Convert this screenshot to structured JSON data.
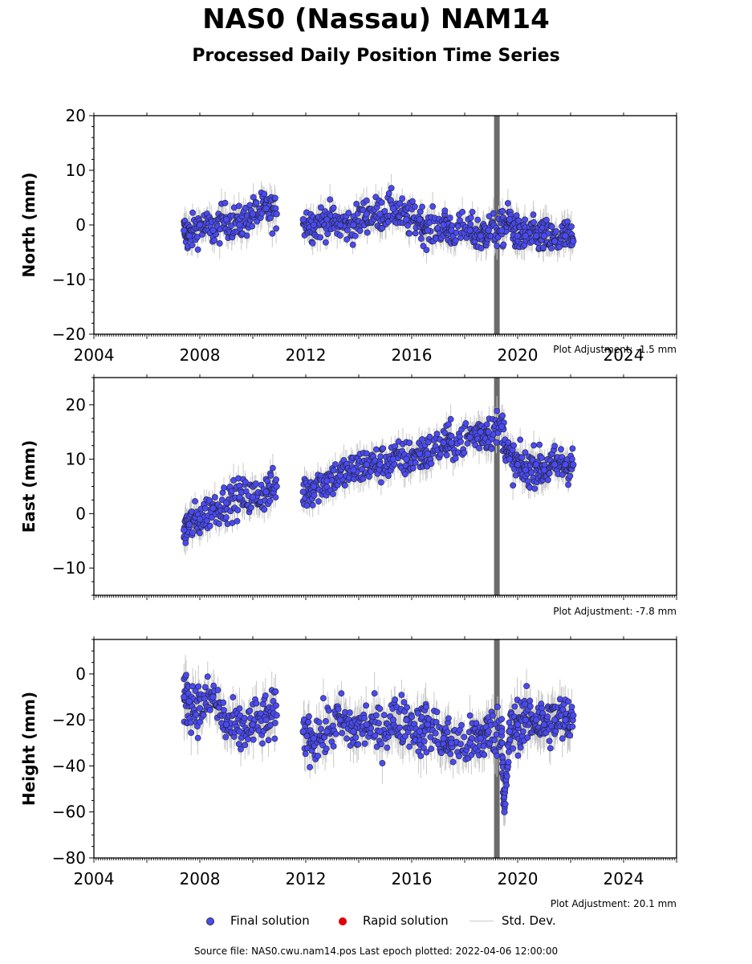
{
  "title": "NAS0 (Nassau) NAM14",
  "subtitle": "Processed Daily Position Time Series",
  "footer": "Source file: NAS0.cwu.nam14.pos  Last epoch plotted: 2022-04-06 12:00:00",
  "legend": {
    "final_label": "Final solution",
    "rapid_label": "Rapid solution",
    "std_label": "Std. Dev."
  },
  "colors": {
    "final": "#4a4af5",
    "rapid": "#e00000",
    "std_dev": "#c8c8c8",
    "equipment_change": "#6b6b6b"
  },
  "chart_data": [
    {
      "type": "scatter",
      "ylabel": "North (mm)",
      "ylim": [
        -20,
        20
      ],
      "yticks": [
        -20,
        -10,
        0,
        10,
        20
      ],
      "xlim": [
        2004,
        2026
      ],
      "xticks": [
        2004,
        2008,
        2012,
        2016,
        2020,
        2024
      ],
      "adjustment": "Plot Adjustment: -1.5 mm",
      "equipment_change": 2019.2,
      "series": [
        {
          "name": "Final solution",
          "x": [
            2007.4,
            2007.6,
            2008.0,
            2008.5,
            2009.0,
            2009.5,
            2010.0,
            2010.5,
            2010.9,
            2011.9,
            2012.3,
            2012.8,
            2013.3,
            2013.8,
            2014.3,
            2014.8,
            2015.3,
            2015.8,
            2016.3,
            2016.6,
            2017.2,
            2017.5,
            2018.2,
            2018.6,
            2018.9,
            2019.4,
            2019.7,
            2020.0,
            2020.3,
            2020.7,
            2021.0,
            2021.4,
            2021.8,
            2022.1
          ],
          "values": [
            -1,
            -2,
            0,
            -1,
            1,
            0,
            2,
            3,
            2,
            1,
            0,
            1,
            0,
            0,
            2,
            2,
            3,
            1,
            1,
            -1,
            0,
            -1,
            -1,
            -2,
            -1,
            -1,
            1,
            -2,
            -2,
            -2,
            -2,
            -3,
            -2,
            -3
          ]
        }
      ]
    },
    {
      "type": "scatter",
      "ylabel": "East (mm)",
      "ylim": [
        -15,
        25
      ],
      "yticks": [
        -10,
        0,
        10,
        20
      ],
      "xlim": [
        2004,
        2026
      ],
      "xticks": [
        2004,
        2008,
        2012,
        2016,
        2020,
        2024
      ],
      "adjustment": "Plot Adjustment: -7.8 mm",
      "equipment_change": 2019.2,
      "series": [
        {
          "name": "Final solution",
          "x": [
            2007.4,
            2007.6,
            2008.0,
            2008.5,
            2009.0,
            2009.5,
            2010.0,
            2010.5,
            2010.9,
            2011.9,
            2012.3,
            2012.8,
            2013.3,
            2013.8,
            2014.3,
            2014.8,
            2015.3,
            2015.8,
            2016.3,
            2016.6,
            2017.2,
            2017.5,
            2018.2,
            2018.6,
            2018.9,
            2019.4,
            2019.7,
            2020.0,
            2020.3,
            2020.7,
            2021.0,
            2021.4,
            2021.8,
            2022.1
          ],
          "values": [
            -3,
            -2,
            -1,
            1,
            2,
            3,
            3,
            4,
            5,
            4,
            5,
            6,
            7,
            8,
            9,
            9,
            10,
            10,
            11,
            11,
            13,
            13,
            14,
            15,
            15,
            16,
            10,
            9,
            8,
            9,
            8,
            9,
            9,
            9
          ]
        }
      ]
    },
    {
      "type": "scatter",
      "ylabel": "Height (mm)",
      "ylim": [
        -80,
        15
      ],
      "yticks": [
        -80,
        -60,
        -40,
        -20,
        0
      ],
      "xlim": [
        2004,
        2026
      ],
      "xticks": [
        2004,
        2008,
        2012,
        2016,
        2020,
        2024
      ],
      "adjustment": "Plot Adjustment: 20.1 mm",
      "equipment_change": 2019.2,
      "series": [
        {
          "name": "Final solution",
          "x": [
            2007.4,
            2007.6,
            2008.0,
            2008.5,
            2009.0,
            2009.5,
            2010.0,
            2010.5,
            2010.9,
            2011.9,
            2012.3,
            2012.8,
            2013.3,
            2013.8,
            2014.3,
            2014.8,
            2015.3,
            2015.8,
            2016.3,
            2016.6,
            2017.2,
            2017.5,
            2018.2,
            2018.6,
            2018.9,
            2019.4,
            2019.5,
            2019.7,
            2020.0,
            2020.3,
            2020.7,
            2021.0,
            2021.4,
            2021.8,
            2022.1
          ],
          "values": [
            -10,
            -12,
            -15,
            -10,
            -22,
            -25,
            -22,
            -20,
            -18,
            -25,
            -28,
            -25,
            -20,
            -25,
            -22,
            -25,
            -20,
            -20,
            -25,
            -22,
            -28,
            -30,
            -30,
            -28,
            -25,
            -25,
            -60,
            -25,
            -22,
            -20,
            -20,
            -22,
            -20,
            -20,
            -18
          ]
        }
      ]
    }
  ]
}
